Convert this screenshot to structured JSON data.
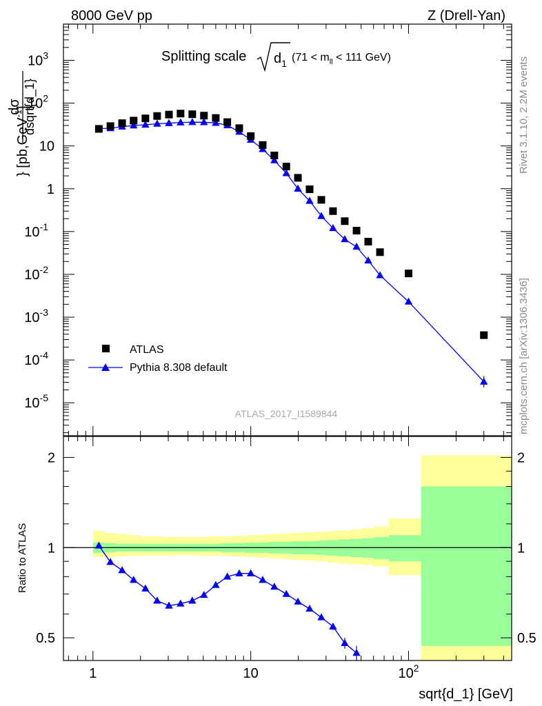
{
  "header": {
    "left": "8000 GeV pp",
    "right": "Z (Drell-Yan)"
  },
  "side": {
    "rivet": "Rivet 3.1.10,  2.2M events",
    "mcplots": "mcplots.cern.ch [arXiv:1306.3436]"
  },
  "watermark": "ATLAS_2017_I1589844",
  "colors": {
    "data": "#000000",
    "mc": "#0000ff",
    "band_inner": "#99ff99",
    "band_outer": "#ffff99",
    "side_text": "#8a8a8a"
  },
  "chart_data": [
    {
      "type": "scatter",
      "title": "Splitting scale √d₁ (71 < m_ll < 111 GeV)",
      "title_parts": {
        "main": "Splitting scale",
        "sqrt_arg": "d",
        "sqrt_sub": "1",
        "range_a": "(71 < m",
        "range_sub": "ll",
        "range_b": " < 111 GeV)"
      },
      "xlabel": "sqrt{d_1} [GeV]",
      "ylabel": "dσ/dsqrt{d_1} [pb,GeV⁻¹]",
      "ylabel_parts": {
        "num": "dσ",
        "den": "dsqrt{d_1}",
        "unit": "} [pb,GeV",
        "exp": "-1",
        "close": "]"
      },
      "xscale": "log",
      "yscale": "log",
      "xlim": [
        0.65,
        450
      ],
      "ylim": [
        1.7e-06,
        7000
      ],
      "yticks": [
        {
          "v": 1e-05,
          "base": "10",
          "exp": "-5"
        },
        {
          "v": 0.0001,
          "base": "10",
          "exp": "-4"
        },
        {
          "v": 0.001,
          "base": "10",
          "exp": "-3"
        },
        {
          "v": 0.01,
          "base": "10",
          "exp": "-2"
        },
        {
          "v": 0.1,
          "base": "10",
          "exp": "-1"
        },
        {
          "v": 1,
          "base": "1",
          "exp": ""
        },
        {
          "v": 10,
          "base": "10",
          "exp": ""
        },
        {
          "v": 100,
          "base": "10",
          "exp": "2"
        },
        {
          "v": 1000,
          "base": "10",
          "exp": "3"
        }
      ],
      "legend": {
        "position": "lower-left",
        "entries": [
          "ATLAS",
          "Pythia 8.308 default"
        ]
      },
      "series": [
        {
          "name": "ATLAS",
          "marker": "square",
          "x": [
            1.09,
            1.29,
            1.53,
            1.81,
            2.15,
            2.55,
            3.03,
            3.59,
            4.26,
            5.05,
            6.0,
            7.1,
            8.45,
            10.0,
            11.9,
            14.1,
            16.8,
            19.9,
            23.6,
            28.0,
            33.2,
            39.4,
            46.8,
            55.5,
            65.9,
            100.0,
            300.0
          ],
          "y": [
            25,
            29,
            34,
            39,
            44,
            50,
            54,
            57,
            55,
            51,
            45,
            36,
            26,
            17,
            10.5,
            6.0,
            3.3,
            1.8,
            0.97,
            0.55,
            0.3,
            0.175,
            0.105,
            0.058,
            0.033,
            0.0105,
            0.00038
          ]
        },
        {
          "name": "Pythia 8.308 default",
          "marker": "triangle",
          "x": [
            1.09,
            1.29,
            1.53,
            1.81,
            2.15,
            2.55,
            3.03,
            3.59,
            4.26,
            5.05,
            6.0,
            7.1,
            8.45,
            10.0,
            11.9,
            14.1,
            16.8,
            19.9,
            23.6,
            28.0,
            33.2,
            39.4,
            46.8,
            55.5,
            65.9,
            100.0,
            300.0
          ],
          "y": [
            25.3,
            25.9,
            28.2,
            30.0,
            31.2,
            32.9,
            34.0,
            35.3,
            35.9,
            35.8,
            34.4,
            30.3,
            21.4,
            13.9,
            8.4,
            4.6,
            2.3,
            1.0,
            0.52,
            0.23,
            0.12,
            0.066,
            0.044,
            0.021,
            0.0095,
            0.0023,
            3.1e-05
          ]
        }
      ]
    },
    {
      "type": "line",
      "ylabel": "Ratio to ATLAS",
      "xlabel": "sqrt{d_1} [GeV]",
      "xscale": "log",
      "yscale": "log",
      "xlim": [
        0.65,
        450
      ],
      "ylim": [
        0.42,
        2.35
      ],
      "xticks": [
        {
          "v": 1,
          "base": "1",
          "exp": ""
        },
        {
          "v": 10,
          "base": "10",
          "exp": ""
        },
        {
          "v": 100,
          "base": "10",
          "exp": "2"
        }
      ],
      "yticks": [
        {
          "v": 0.5,
          "label": "0.5"
        },
        {
          "v": 1,
          "label": "1"
        },
        {
          "v": 2,
          "label": "2"
        }
      ],
      "bands": {
        "edges": [
          1.0,
          1.18,
          1.4,
          1.66,
          1.97,
          2.34,
          2.77,
          3.29,
          3.9,
          4.63,
          5.49,
          6.51,
          7.72,
          9.16,
          10.9,
          12.9,
          15.3,
          18.2,
          21.5,
          25.6,
          30.3,
          36.0,
          42.7,
          50.6,
          60.1,
          75.0,
          120.0,
          450.0
        ],
        "inner_hi": [
          1.04,
          1.035,
          1.03,
          1.03,
          1.03,
          1.03,
          1.03,
          1.03,
          1.03,
          1.03,
          1.03,
          1.035,
          1.035,
          1.04,
          1.04,
          1.045,
          1.045,
          1.05,
          1.05,
          1.055,
          1.06,
          1.065,
          1.07,
          1.075,
          1.085,
          1.1,
          1.6
        ],
        "inner_lo": [
          0.96,
          0.965,
          0.97,
          0.97,
          0.97,
          0.97,
          0.97,
          0.97,
          0.97,
          0.97,
          0.97,
          0.965,
          0.965,
          0.96,
          0.96,
          0.955,
          0.955,
          0.95,
          0.95,
          0.945,
          0.94,
          0.935,
          0.93,
          0.925,
          0.915,
          0.9,
          0.47
        ],
        "outer_hi": [
          1.14,
          1.12,
          1.11,
          1.1,
          1.09,
          1.09,
          1.085,
          1.085,
          1.085,
          1.085,
          1.09,
          1.09,
          1.095,
          1.1,
          1.105,
          1.11,
          1.115,
          1.12,
          1.125,
          1.13,
          1.135,
          1.14,
          1.15,
          1.16,
          1.175,
          1.25,
          2.03
        ],
        "outer_lo": [
          0.93,
          0.93,
          0.935,
          0.94,
          0.94,
          0.94,
          0.94,
          0.945,
          0.945,
          0.94,
          0.94,
          0.94,
          0.935,
          0.93,
          0.925,
          0.92,
          0.915,
          0.91,
          0.905,
          0.9,
          0.89,
          0.885,
          0.88,
          0.875,
          0.865,
          0.81,
          0.42
        ]
      },
      "series": [
        {
          "name": "Pythia 8.308 default",
          "marker": "triangle",
          "x": [
            1.09,
            1.29,
            1.53,
            1.81,
            2.15,
            2.55,
            3.03,
            3.59,
            4.26,
            5.05,
            6.0,
            7.1,
            8.45,
            10.0,
            11.9,
            14.1,
            16.8,
            19.9,
            23.6,
            28.0,
            33.2,
            39.4,
            46.8
          ],
          "y": [
            1.015,
            0.895,
            0.84,
            0.78,
            0.73,
            0.665,
            0.64,
            0.65,
            0.665,
            0.695,
            0.75,
            0.8,
            0.82,
            0.82,
            0.78,
            0.74,
            0.7,
            0.66,
            0.625,
            0.585,
            0.545,
            0.48,
            0.445
          ],
          "yerr": [
            0.01,
            0.01,
            0.01,
            0.01,
            0.01,
            0.01,
            0.01,
            0.01,
            0.01,
            0.01,
            0.01,
            0.01,
            0.01,
            0.01,
            0.01,
            0.01,
            0.01,
            0.01,
            0.01,
            0.012,
            0.014,
            0.02,
            0.025
          ]
        }
      ]
    }
  ]
}
